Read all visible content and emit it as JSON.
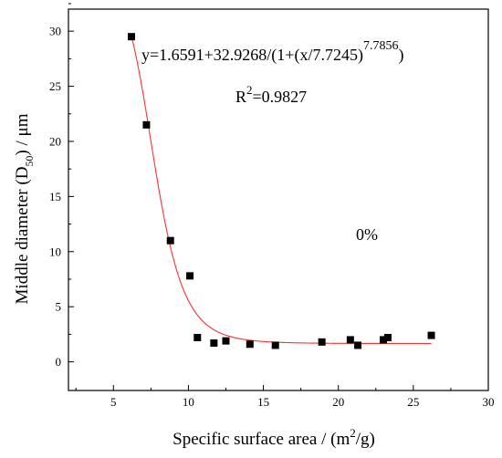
{
  "chart_data": {
    "type": "scatter",
    "title": "",
    "xlabel": {
      "prefix": "Specific  surface area / (m",
      "sup": "2",
      "suffix": "/g)"
    },
    "ylabel": {
      "prefix": "Middle diameter (D",
      "sub": "50",
      "suffix": ") / μm"
    },
    "xlim": [
      2,
      30
    ],
    "ylim": [
      -2.6,
      32
    ],
    "xticks": [
      5,
      10,
      15,
      20,
      25,
      30
    ],
    "yticks": [
      0,
      5,
      10,
      15,
      20,
      25,
      30
    ],
    "grid": false,
    "series": [
      {
        "marker": "square",
        "color": "#000000",
        "x": [
          6.2,
          7.2,
          8.8,
          10.1,
          10.6,
          11.7,
          12.5,
          14.1,
          15.8,
          18.9,
          20.8,
          21.3,
          23.0,
          23.3,
          26.2
        ],
        "y": [
          29.5,
          21.5,
          11.0,
          7.8,
          2.2,
          1.7,
          1.9,
          1.6,
          1.5,
          1.8,
          2.0,
          1.5,
          2.0,
          2.2,
          2.4
        ]
      }
    ],
    "fit": {
      "color": "#ff3030",
      "A": 1.6591,
      "B": 32.9268,
      "x0": 7.7245,
      "p": 7.7856,
      "x_range": [
        6.2,
        26.2
      ]
    },
    "annotations": {
      "equation": {
        "main": "y=1.6591+32.9268/(1+(x/7.7245)",
        "sup": "7.7856",
        "tail": ")"
      },
      "r2": {
        "prefix": "R",
        "sup": "2",
        "suffix": "=0.9827"
      },
      "label": "0%"
    }
  }
}
